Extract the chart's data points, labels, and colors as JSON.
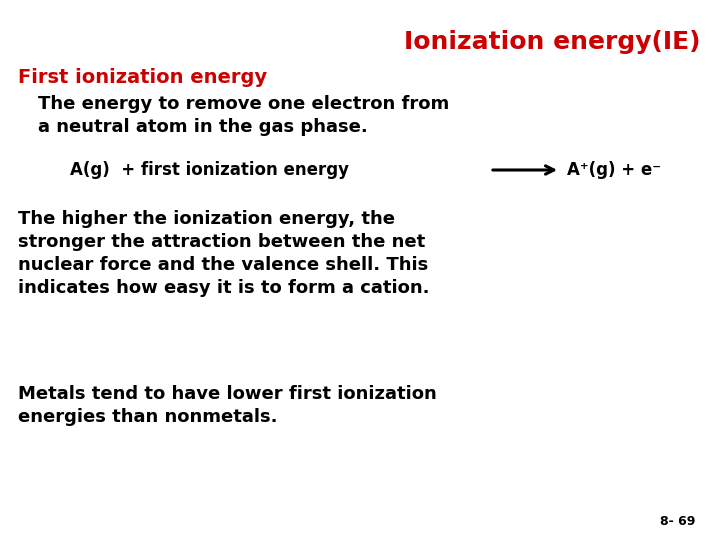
{
  "title": "Ionization energy(IE)",
  "title_color": "#cc0000",
  "title_fontsize": 18,
  "bg_color": "#ffffff",
  "subtitle": "First ionization energy",
  "subtitle_color": "#cc0000",
  "subtitle_fontsize": 14,
  "body1": "The energy to remove one electron from\na neutral atom in the gas phase.",
  "body1_color": "#000000",
  "body1_fontsize": 13,
  "equation_left": "A(g)  + first ionization energy",
  "equation_right": "A⁺(g) + e⁻",
  "equation_color": "#000000",
  "equation_fontsize": 12,
  "body2": "The higher the ionization energy, the\nstronger the attraction between the net\nnuclear force and the valence shell. This\nindicates how easy it is to form a cation.",
  "body2_color": "#000000",
  "body2_fontsize": 13,
  "body3": "Metals tend to have lower first ionization\nenergies than nonmetals.",
  "body3_color": "#000000",
  "body3_fontsize": 13,
  "footnote": "8- 69",
  "footnote_color": "#000000",
  "footnote_fontsize": 9
}
